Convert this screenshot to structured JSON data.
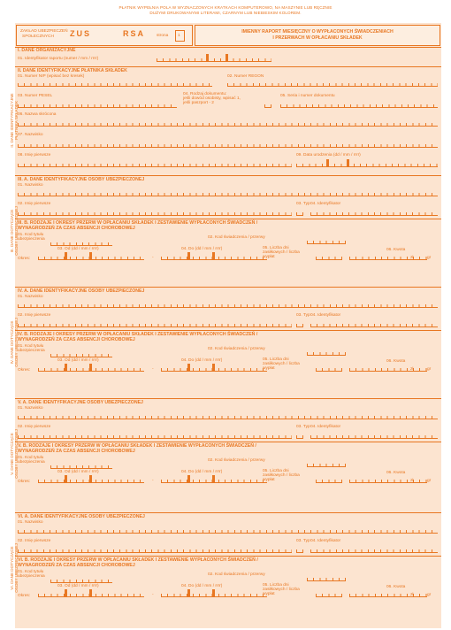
{
  "notice": [
    "PŁATNIK WYPEŁNIA POLA W WYZNACZONYCH KRATKACH KOMPUTEROWO, NA MASZYNIE LUB RĘCZNIE",
    "DUŻYMI DRUKOWANYMI LITERAMI, CZARNYM LUB NIEBIESKIM KOLOREM."
  ],
  "header": {
    "zaklad": [
      "ZAKŁAD UBEZPIECZEŃ",
      "SPOŁECZNYCH"
    ],
    "zus": "ZUS",
    "rsa": "RSA",
    "strona": "strona",
    "strona_num": "1",
    "title": [
      "IMIENNY RAPORT MIESIĘCZNY O WYPŁACONYCH ŚWIADCZENIACH",
      "I PRZERWACH W OPŁACANIU SKŁADEK"
    ]
  },
  "section_i": {
    "title": "I. DANE ORGANIZACYJNE",
    "f01": "01. Identyfikator raportu (numer / mm / rrrr)"
  },
  "section_ii": {
    "title": "II. DANE IDENTYFIKACYJNE PŁATNIKA SKŁADEK",
    "side": [
      "II. DANE IDENTYFIKACYJNE",
      "PŁATNIKA SKŁADEK"
    ],
    "f01": "01. Numer NIP (wpisać bez kresek)",
    "f02": "02. Numer REGON",
    "f03": "03. Numer PESEL",
    "f04": [
      "04. Rodzaj dokumentu:",
      "jeśli dowód osobisty, wpisać 1,",
      "jeśli paszport - 2"
    ],
    "f05": "05. Seria i numer dokumentu",
    "f06": "06. Nazwa skrócona",
    "f07": "07. Nazwisko",
    "f08": "08. Imię pierwsze",
    "f09": "09. Data urodzenia (dd / mm / rrrr)"
  },
  "insured": [
    {
      "a_title": "III. A. DANE IDENTYFIKACYJNE OSOBY UBEZPIECZONEJ",
      "b_title": [
        "III. B. RODZAJE I OKRESY PRZERW  W OPŁACANIU SKŁADEK I ZESTAWIENIE WYPŁACONYCH ŚWIADCZEŃ /",
        "WYNAGRODZEŃ ZA CZAS ABSENCJI CHOROBOWEJ"
      ],
      "side": [
        "III. DANE DOTYCZĄCE",
        "OSOBY UBEZPIECZONEJ"
      ]
    },
    {
      "a_title": "IV. A. DANE IDENTYFIKACYJNE OSOBY UBEZPIECZONEJ",
      "b_title": [
        "IV. B. RODZAJE I OKRESY PRZERW  W OPŁACANIU SKŁADEK I ZESTAWIENIE WYPŁACONYCH ŚWIADCZEŃ /",
        "WYNAGRODZEŃ ZA CZAS ABSENCJI CHOROBOWEJ"
      ],
      "side": [
        "IV. DANE DOTYCZĄCE",
        "OSOBY UBEZPIECZONEJ"
      ]
    },
    {
      "a_title": "V. A. DANE IDENTYFIKACYJNE OSOBY UBEZPIECZONEJ",
      "b_title": [
        "V. B. RODZAJE I OKRESY PRZERW  W OPŁACANIU SKŁADEK I ZESTAWIENIE WYPŁACONYCH ŚWIADCZEŃ /",
        "WYNAGRODZEŃ ZA CZAS ABSENCJI CHOROBOWEJ"
      ],
      "side": [
        "V. DANE DOTYCZĄCE",
        "OSOBY UBEZPIECZONEJ"
      ]
    },
    {
      "a_title": "VI. A. DANE IDENTYFIKACYJNE OSOBY UBEZPIECZONEJ",
      "b_title": [
        "VI. B. RODZAJE I OKRESY PRZERW  W OPŁACANIU SKŁADEK I ZESTAWIENIE WYPŁACONYCH ŚWIADCZEŃ /",
        "WYNAGRODZEŃ ZA CZAS ABSENCJI CHOROBOWEJ"
      ],
      "side": [
        "VI. DANE DOTYCZĄCE",
        "OSOBY UBEZPIECZONEJ"
      ]
    }
  ],
  "insured_labels": {
    "nazwisko": "01. Nazwisko",
    "imie": "02. Imię pierwsze",
    "typ": "03. Typ",
    "identyfikator": "04. Identyfikator",
    "kod_tytulu": [
      "01. Kod tytułu",
      "ubezpieczenia"
    ],
    "kod_swiadczenia": "02. Kod świadczenia / przerwy",
    "od": "03. Od (dd / mm / rrrr)",
    "do": "04. Do (dd / mm / rrrr)",
    "liczba_dni": [
      "05. Liczba dni",
      "zasiłkowych / liczba",
      "wypłat"
    ],
    "kwota": "06. Kwota",
    "okres": "Okres:",
    "dash": "-",
    "zl": "zł",
    "gr": "gr"
  }
}
